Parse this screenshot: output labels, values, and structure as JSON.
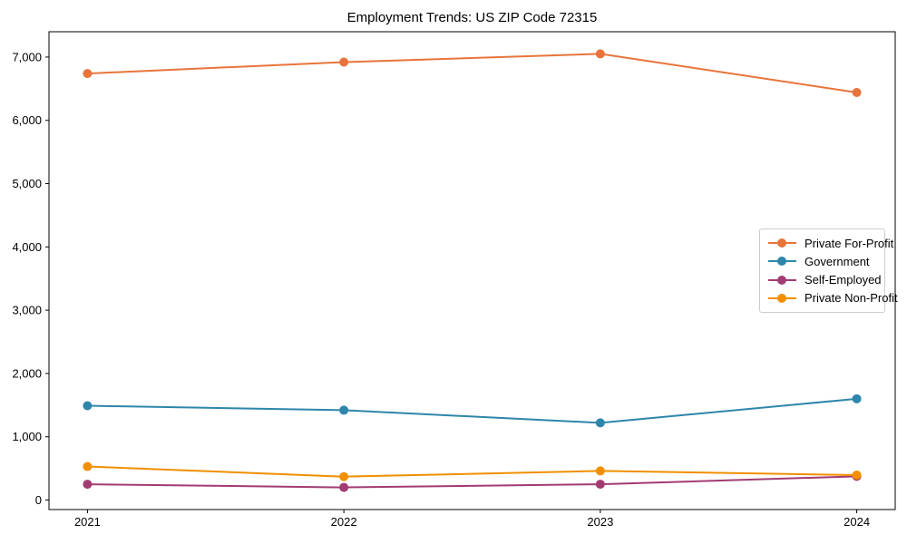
{
  "title": "Employment Trends: US ZIP Code 72315",
  "chart_data": {
    "type": "line",
    "title": "Employment Trends: US ZIP Code 72315",
    "xlabel": "",
    "ylabel": "",
    "categories": [
      "2021",
      "2022",
      "2023",
      "2024"
    ],
    "x": [
      2021,
      2022,
      2023,
      2024
    ],
    "series": [
      {
        "name": "Private For-Profit",
        "color": "#E8743B",
        "values": [
          6740,
          6920,
          7050,
          6440
        ]
      },
      {
        "name": "Government",
        "color": "#2E86AB",
        "values": [
          1490,
          1420,
          1220,
          1600
        ]
      },
      {
        "name": "Self-Employed",
        "color": "#A23B72",
        "values": [
          250,
          200,
          250,
          375
        ]
      },
      {
        "name": "Private Non-Profit",
        "color": "#F18F01",
        "values": [
          530,
          370,
          460,
          395
        ]
      }
    ],
    "xlim": [
      2020.85,
      2024.15
    ],
    "ylim": [
      -150,
      7400
    ],
    "yticks": {
      "values": [
        0,
        1000,
        2000,
        3000,
        4000,
        5000,
        6000,
        7000
      ],
      "labels": [
        "0",
        "1,000",
        "2,000",
        "3,000",
        "4,000",
        "5,000",
        "6,000",
        "7,000"
      ]
    },
    "grid": false,
    "legend_position": "center right",
    "marker": "circle",
    "line_width": 2,
    "marker_radius": 5,
    "axis_color": "#000000",
    "background": "#ffffff"
  }
}
